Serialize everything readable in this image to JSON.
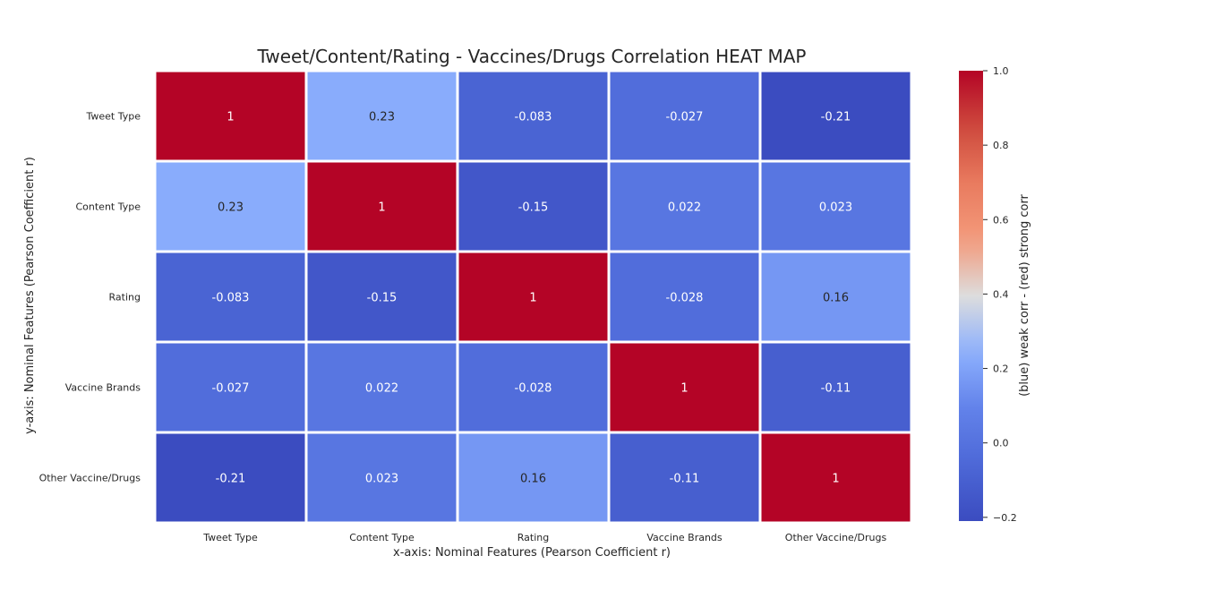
{
  "chart_data": {
    "type": "heatmap",
    "title": "Tweet/Content/Rating - Vaccines/Drugs Correlation HEAT MAP",
    "xlabel": "x-axis: Nominal Features (Pearson Coefficient r)",
    "ylabel": "y-axis: Nominal Features (Pearson Coefficient r)",
    "x_categories": [
      "Tweet Type",
      "Content Type",
      "Rating",
      "Vaccine Brands",
      "Other Vaccine/Drugs"
    ],
    "y_categories": [
      "Tweet Type",
      "Content Type",
      "Rating",
      "Vaccine Brands",
      "Other Vaccine/Drugs"
    ],
    "values": [
      [
        1,
        0.23,
        -0.083,
        -0.027,
        -0.21
      ],
      [
        0.23,
        1,
        -0.15,
        0.022,
        0.023
      ],
      [
        -0.083,
        -0.15,
        1,
        -0.028,
        0.16
      ],
      [
        -0.027,
        0.022,
        -0.028,
        1,
        -0.11
      ],
      [
        -0.21,
        0.023,
        0.16,
        -0.11,
        1
      ]
    ],
    "cell_labels": [
      [
        "1",
        "0.23",
        "-0.083",
        "-0.027",
        "-0.21"
      ],
      [
        "0.23",
        "1",
        "-0.15",
        "0.022",
        "0.023"
      ],
      [
        "-0.083",
        "-0.15",
        "1",
        "-0.028",
        "0.16"
      ],
      [
        "-0.027",
        "0.022",
        "-0.028",
        "1",
        "-0.11"
      ],
      [
        "-0.21",
        "0.023",
        "0.16",
        "-0.11",
        "1"
      ]
    ],
    "colormap": "coolwarm",
    "colorbar": {
      "label": "(blue) weak corr - (red) strong corr",
      "vmin": -0.21,
      "vmax": 1.0,
      "ticks": [
        -0.2,
        0.0,
        0.2,
        0.4,
        0.6,
        0.8,
        1.0
      ],
      "tick_labels": [
        "−0.2",
        "0.0",
        "0.2",
        "0.4",
        "0.6",
        "0.8",
        "1.0"
      ]
    },
    "colors": {
      "background": "#ffffff",
      "cell_border": "#ffffff",
      "text": "#262626"
    }
  }
}
